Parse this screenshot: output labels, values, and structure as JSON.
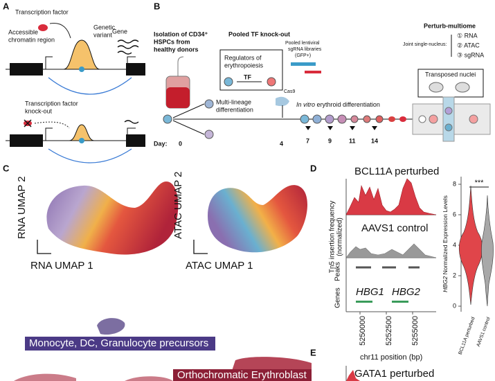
{
  "panel_a": {
    "label": "A",
    "tf": "Transcription factor",
    "region": [
      "Accessible",
      "chromatin region"
    ],
    "variant": [
      "Genetic",
      "variant"
    ],
    "gene": "Gene",
    "knockout": [
      "Transcription factor",
      "knock-out"
    ]
  },
  "panel_b": {
    "label": "B",
    "isolation": [
      "Isolation of CD34⁺",
      "HSPCs from",
      "healthy donors"
    ],
    "pooled": "Pooled TF knock-out",
    "regulators": [
      "Regulators of",
      "erythropoiesis"
    ],
    "tf": "TF",
    "library": [
      "Pooled lentiviral",
      "sgRNA libraries",
      "(GFP+)"
    ],
    "cas9": "Cas9",
    "multi": [
      "Multi-lineage",
      "differentiation"
    ],
    "invitro": [
      "In vitro",
      " erythroid differentiation"
    ],
    "day": "Day:",
    "days": [
      "0",
      "4",
      "7",
      "9",
      "11",
      "14"
    ],
    "multiome": "Perturb-multiome",
    "joint": "Joint single-nucleus:",
    "modalities": [
      "① RNA",
      "② ATAC",
      "③ sgRNA"
    ],
    "nuclei": "Transposed nuclei"
  },
  "panel_c": {
    "label": "C",
    "rna_y": "RNA UMAP 2",
    "rna_x": "RNA UMAP 1",
    "atac_y": "ATAC UMAP 2",
    "atac_x": "ATAC UMAP 1",
    "clusters": [
      "Monocyte, DC, Granulocyte precursors",
      "Orthochromatic Erythroblast"
    ]
  },
  "panel_d": {
    "label": "D",
    "perturbed": "BCL11A perturbed",
    "control": "AAVS1 control",
    "ylabel": [
      "Tn5 insertion frequency",
      "(normalized)"
    ],
    "peaks": "Peaks",
    "genes": "Genes",
    "gene_names": [
      "HBG1",
      "HBG2"
    ],
    "xticks": [
      "5250000",
      "5252500",
      "5255000"
    ],
    "xlabel": "chr11 position (bp)",
    "signif": "***",
    "violin_ylabel": [
      "HBG2",
      " Normalized Expression Levels"
    ],
    "violin_yticks": [
      "0",
      "2",
      "4",
      "6",
      "8"
    ],
    "violin_groups": [
      "BCL11A perturbed",
      "AAVS1 control"
    ]
  },
  "panel_e": {
    "label": "E",
    "perturbed": "GATA1 perturbed"
  }
}
